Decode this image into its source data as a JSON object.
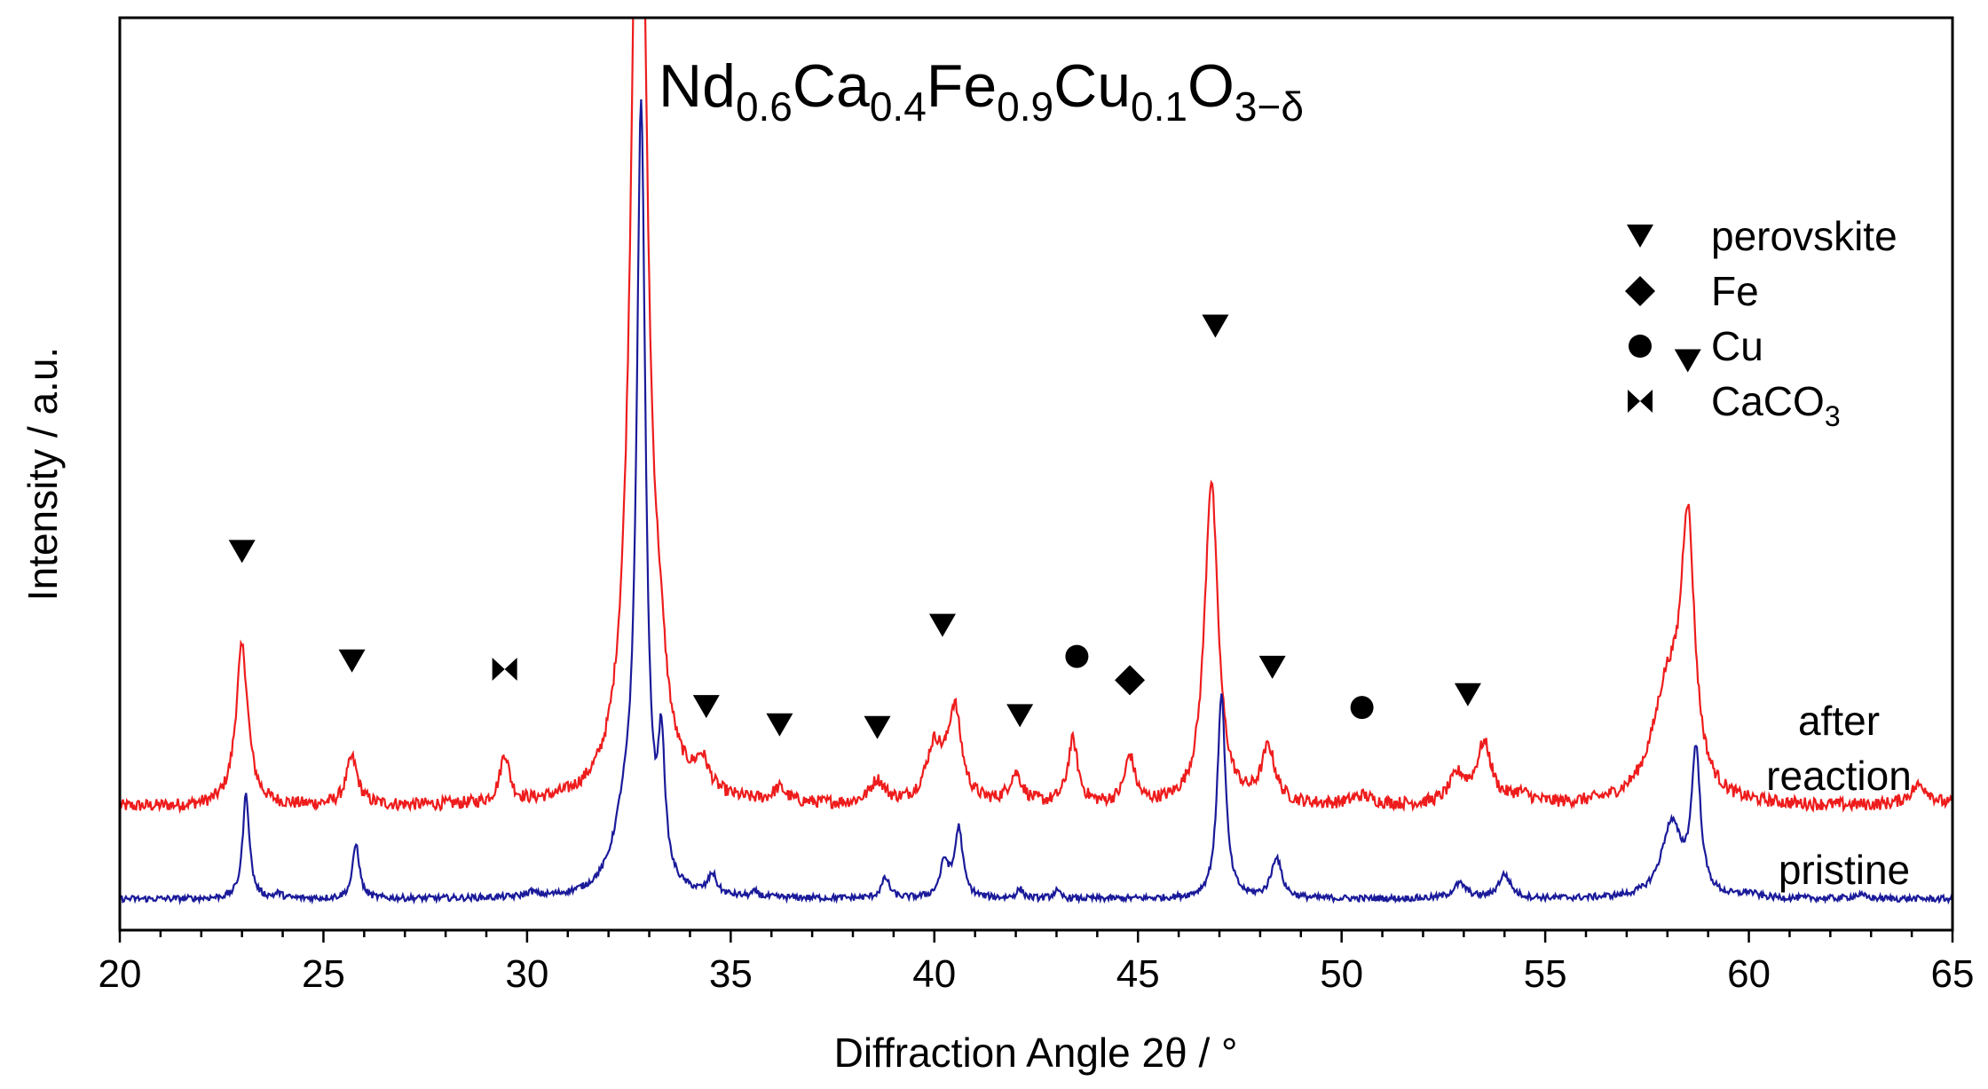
{
  "chart_data": {
    "type": "line",
    "title": {
      "parts": [
        {
          "t": "Nd",
          "sub": false
        },
        {
          "t": "0.6",
          "sub": true
        },
        {
          "t": "Ca",
          "sub": false
        },
        {
          "t": "0.4",
          "sub": true
        },
        {
          "t": "Fe",
          "sub": false
        },
        {
          "t": "0.9",
          "sub": true
        },
        {
          "t": "Cu",
          "sub": false
        },
        {
          "t": "0.1",
          "sub": true
        },
        {
          "t": "O",
          "sub": false
        },
        {
          "t": "3−δ",
          "sub": true
        }
      ]
    },
    "xlabel": "Diffraction Angle 2θ / °",
    "ylabel": "Intensity / a.u.",
    "xlim": [
      20,
      65
    ],
    "ylim": [
      0,
      100
    ],
    "xticks": [
      20,
      25,
      30,
      35,
      40,
      45,
      50,
      55,
      60,
      65
    ],
    "xtick_labels": [
      "20",
      "25",
      "30",
      "35",
      "40",
      "45",
      "50",
      "55",
      "60",
      "65"
    ],
    "series": [
      {
        "name": "after reaction",
        "label_lines": [
          "after",
          "reaction"
        ],
        "color": "#ee1c1c",
        "baseline": 13.5,
        "noise": 0.7,
        "peaks": [
          {
            "x": 23.0,
            "h": 17.5,
            "w": 0.18
          },
          {
            "x": 25.7,
            "h": 5.2,
            "w": 0.17
          },
          {
            "x": 29.45,
            "h": 5.3,
            "w": 0.14
          },
          {
            "x": 32.75,
            "h": 125,
            "w": 0.22
          },
          {
            "x": 33.25,
            "h": 7,
            "w": 0.2
          },
          {
            "x": 34.3,
            "h": 3.2,
            "w": 0.2
          },
          {
            "x": 36.2,
            "h": 1.5,
            "w": 0.2
          },
          {
            "x": 38.6,
            "h": 2.5,
            "w": 0.22
          },
          {
            "x": 40.0,
            "h": 6,
            "w": 0.25
          },
          {
            "x": 40.5,
            "h": 10,
            "w": 0.2
          },
          {
            "x": 42.0,
            "h": 3.2,
            "w": 0.2
          },
          {
            "x": 43.4,
            "h": 7,
            "w": 0.15
          },
          {
            "x": 44.8,
            "h": 5.2,
            "w": 0.15
          },
          {
            "x": 46.8,
            "h": 35.5,
            "w": 0.2
          },
          {
            "x": 48.2,
            "h": 6,
            "w": 0.2
          },
          {
            "x": 50.5,
            "h": 1,
            "w": 0.3
          },
          {
            "x": 52.85,
            "h": 3,
            "w": 0.25
          },
          {
            "x": 53.5,
            "h": 6.5,
            "w": 0.22
          },
          {
            "x": 54.4,
            "h": 1,
            "w": 0.3
          },
          {
            "x": 58.0,
            "h": 12,
            "w": 0.45
          },
          {
            "x": 58.5,
            "h": 28,
            "w": 0.2
          },
          {
            "x": 64.2,
            "h": 2.3,
            "w": 0.3
          }
        ]
      },
      {
        "name": "pristine",
        "label_lines": [
          "pristine"
        ],
        "color": "#1a1a9a",
        "baseline": 3.4,
        "noise": 0.35,
        "peaks": [
          {
            "x": 23.1,
            "h": 11.5,
            "w": 0.1
          },
          {
            "x": 23.9,
            "h": 0.5,
            "w": 0.1
          },
          {
            "x": 25.8,
            "h": 6,
            "w": 0.1
          },
          {
            "x": 30.1,
            "h": 0.5,
            "w": 0.15
          },
          {
            "x": 32.4,
            "h": 7,
            "w": 0.35
          },
          {
            "x": 32.8,
            "h": 84,
            "w": 0.13
          },
          {
            "x": 33.3,
            "h": 14,
            "w": 0.1
          },
          {
            "x": 34.55,
            "h": 2.2,
            "w": 0.12
          },
          {
            "x": 35.6,
            "h": 0.5,
            "w": 0.1
          },
          {
            "x": 38.8,
            "h": 2.2,
            "w": 0.12
          },
          {
            "x": 40.25,
            "h": 3.8,
            "w": 0.13
          },
          {
            "x": 40.6,
            "h": 7.5,
            "w": 0.12
          },
          {
            "x": 42.1,
            "h": 1,
            "w": 0.1
          },
          {
            "x": 43.0,
            "h": 0.8,
            "w": 0.1
          },
          {
            "x": 47.05,
            "h": 22.5,
            "w": 0.12
          },
          {
            "x": 48.4,
            "h": 4.5,
            "w": 0.15
          },
          {
            "x": 52.9,
            "h": 1.6,
            "w": 0.2
          },
          {
            "x": 54.0,
            "h": 2.6,
            "w": 0.18
          },
          {
            "x": 58.1,
            "h": 8,
            "w": 0.3
          },
          {
            "x": 58.7,
            "h": 15.5,
            "w": 0.13
          },
          {
            "x": 60.0,
            "h": 0.5,
            "w": 0.2
          },
          {
            "x": 62.7,
            "h": 0.4,
            "w": 0.2
          }
        ]
      }
    ],
    "phase_markers": [
      {
        "phase": "perovskite",
        "x": 23.0,
        "y": 41.5
      },
      {
        "phase": "perovskite",
        "x": 25.7,
        "y": 29.5
      },
      {
        "phase": "CaCO3",
        "x": 29.45,
        "y": 28.6
      },
      {
        "phase": "perovskite",
        "x": 34.4,
        "y": 24.5
      },
      {
        "phase": "perovskite",
        "x": 36.2,
        "y": 22.5
      },
      {
        "phase": "perovskite",
        "x": 38.6,
        "y": 22.2
      },
      {
        "phase": "perovskite",
        "x": 40.2,
        "y": 33.4
      },
      {
        "phase": "perovskite",
        "x": 42.1,
        "y": 23.5
      },
      {
        "phase": "Cu",
        "x": 43.5,
        "y": 30.0
      },
      {
        "phase": "Fe",
        "x": 44.8,
        "y": 27.4
      },
      {
        "phase": "perovskite",
        "x": 46.9,
        "y": 66.2
      },
      {
        "phase": "perovskite",
        "x": 48.3,
        "y": 28.8
      },
      {
        "phase": "Cu",
        "x": 50.5,
        "y": 24.4
      },
      {
        "phase": "perovskite",
        "x": 53.1,
        "y": 25.8
      },
      {
        "phase": "perovskite",
        "x": 58.5,
        "y": 62.4
      }
    ],
    "legend": {
      "position": "top-right",
      "entries": [
        {
          "phase": "perovskite",
          "marker": "triangle-down",
          "label": "perovskite",
          "sub": ""
        },
        {
          "phase": "Fe",
          "marker": "diamond",
          "label": "Fe",
          "sub": ""
        },
        {
          "phase": "Cu",
          "marker": "circle",
          "label": "Cu",
          "sub": ""
        },
        {
          "phase": "CaCO3",
          "marker": "bowtie",
          "label": "CaCO",
          "sub": "3"
        }
      ]
    }
  }
}
